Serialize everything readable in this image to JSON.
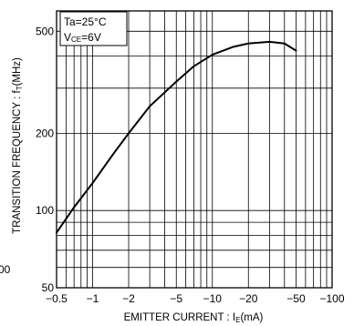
{
  "chart_data": {
    "type": "line",
    "xscale": "log",
    "yscale": "log",
    "x_direction": "reversed-negative",
    "xlim": [
      -0.5,
      -100
    ],
    "ylim": [
      50,
      600
    ],
    "grid": true,
    "xlabel_main": "EMITTER  CURRENT : I",
    "xlabel_sub": "E",
    "xlabel_unit": "(mA)",
    "ylabel_main": "TRANSITION  FREQUENCY : f",
    "ylabel_sub": "T",
    "ylabel_unit": "(MHz)",
    "x_ticks": [
      {
        "value": -0.5,
        "label": "−0.5"
      },
      {
        "value": -1,
        "label": "−1"
      },
      {
        "value": -2,
        "label": "−2"
      },
      {
        "value": -5,
        "label": "−5"
      },
      {
        "value": -10,
        "label": "−10"
      },
      {
        "value": -20,
        "label": "−20"
      },
      {
        "value": -50,
        "label": "−50"
      },
      {
        "value": -100,
        "label": "−100"
      }
    ],
    "y_ticks": [
      {
        "value": 50,
        "label": "50"
      },
      {
        "value": 100,
        "label": "100"
      },
      {
        "value": 200,
        "label": "200"
      },
      {
        "value": 500,
        "label": "500"
      }
    ],
    "annotation": {
      "line1": "Ta=25°C",
      "line2_main": "V",
      "line2_sub": "CE",
      "line2_rest": "=6V"
    },
    "left_cut_label": "00",
    "series": [
      {
        "color": "#000000",
        "x": [
          -0.5,
          -0.7,
          -1,
          -1.5,
          -2,
          -3,
          -5,
          -7,
          -10,
          -15,
          -20,
          -30,
          -40,
          -50
        ],
        "y": [
          82,
          103,
          128,
          167,
          200,
          255,
          318,
          365,
          405,
          435,
          448,
          455,
          448,
          420
        ]
      }
    ]
  }
}
